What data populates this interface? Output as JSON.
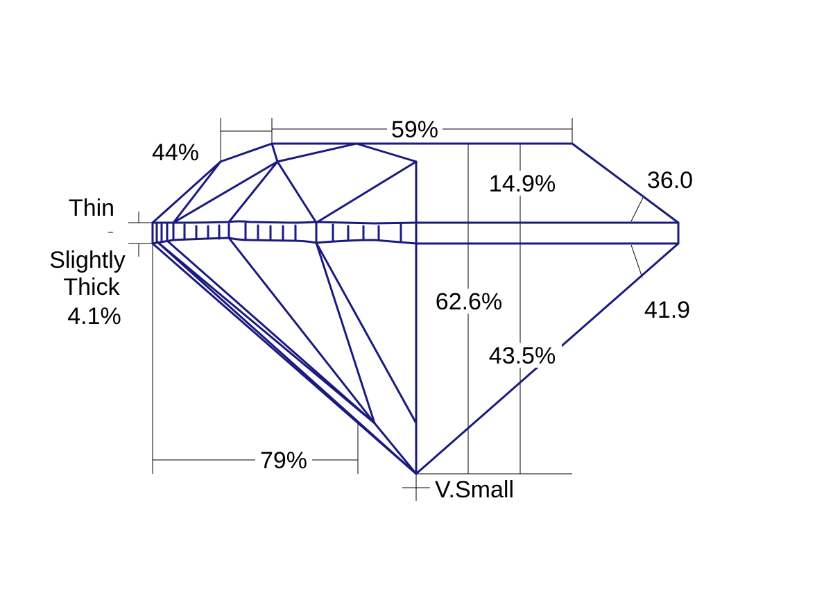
{
  "colors": {
    "outline": "#1a1a80",
    "dimension": "#000000",
    "background": "#ffffff"
  },
  "diagram": {
    "labels": {
      "table_pct": "59%",
      "crown_pct": "44%",
      "girdle_top": "Thin",
      "girdle_bottom_1": "Slightly",
      "girdle_bottom_2": "Thick",
      "girdle_pct": "4.1%",
      "crown_height": "14.9%",
      "crown_angle": "36.0",
      "total_depth": "62.6%",
      "pavilion_angle": "41.9",
      "pavilion_depth": "43.5%",
      "lower_half": "79%",
      "culet": "V.Small"
    }
  }
}
